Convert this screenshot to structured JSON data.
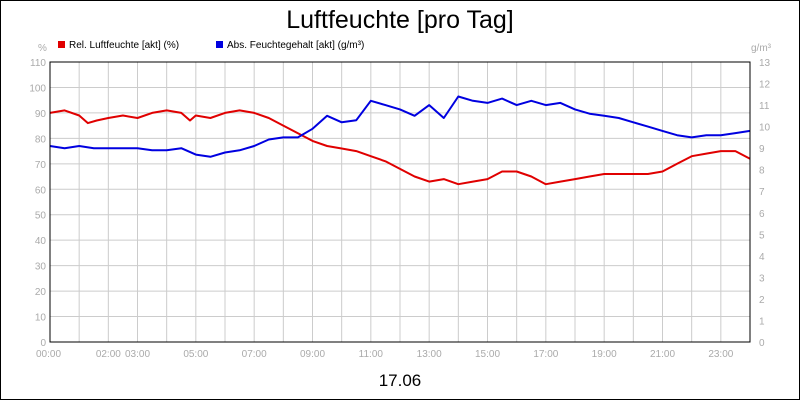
{
  "chart_data": {
    "type": "line",
    "title": "Luftfeuchte [pro Tag]",
    "date_label": "17.06",
    "y_left_unit": "%",
    "y_right_unit": "g/m³",
    "y_left_range": [
      0,
      110
    ],
    "y_left_ticks": [
      0,
      10,
      20,
      30,
      40,
      50,
      60,
      70,
      80,
      90,
      100,
      110
    ],
    "y_right_range": [
      0,
      13
    ],
    "y_right_ticks": [
      0,
      1,
      2,
      3,
      4,
      5,
      6,
      7,
      8,
      9,
      10,
      11,
      12,
      13
    ],
    "x_range": [
      0,
      24
    ],
    "x_ticks": [
      {
        "x": 0,
        "label": "00:00"
      },
      {
        "x": 2,
        "label": "02:00"
      },
      {
        "x": 3,
        "label": "03:00"
      },
      {
        "x": 5,
        "label": "05:00"
      },
      {
        "x": 7,
        "label": "07:00"
      },
      {
        "x": 9,
        "label": "09:00"
      },
      {
        "x": 11,
        "label": "11:00"
      },
      {
        "x": 13,
        "label": "13:00"
      },
      {
        "x": 15,
        "label": "15:00"
      },
      {
        "x": 17,
        "label": "17:00"
      },
      {
        "x": 19,
        "label": "19:00"
      },
      {
        "x": 21,
        "label": "21:00"
      },
      {
        "x": 23,
        "label": "23:00"
      }
    ],
    "grid": true,
    "legend_position": "top-left",
    "series": [
      {
        "name": "Rel. Luftfeuchte [akt] (%)",
        "color": "#e00000",
        "axis": "left",
        "x": [
          0,
          0.5,
          1,
          1.3,
          1.6,
          2,
          2.5,
          3,
          3.5,
          4,
          4.5,
          4.8,
          5,
          5.5,
          6,
          6.5,
          7,
          7.5,
          8,
          8.5,
          9,
          9.5,
          10,
          10.5,
          11,
          11.5,
          12,
          12.5,
          13,
          13.5,
          14,
          14.5,
          15,
          15.5,
          16,
          16.5,
          17,
          17.5,
          18,
          18.5,
          19,
          19.5,
          20,
          20.5,
          21,
          21.5,
          22,
          22.5,
          23,
          23.5,
          24
        ],
        "values": [
          90,
          91,
          89,
          86,
          87,
          88,
          89,
          88,
          90,
          91,
          90,
          87,
          89,
          88,
          90,
          91,
          90,
          88,
          85,
          82,
          79,
          77,
          76,
          75,
          73,
          71,
          68,
          65,
          63,
          64,
          62,
          63,
          64,
          67,
          67,
          65,
          62,
          63,
          64,
          65,
          66,
          66,
          66,
          66,
          67,
          70,
          73,
          74,
          75,
          75,
          72
        ]
      },
      {
        "name": "Abs. Feuchtegehalt [akt] (g/m³)",
        "color": "#0000e0",
        "axis": "right",
        "x": [
          0,
          0.5,
          1,
          1.5,
          2,
          2.5,
          3,
          3.5,
          4,
          4.5,
          5,
          5.5,
          6,
          6.5,
          7,
          7.5,
          8,
          8.5,
          9,
          9.5,
          10,
          10.5,
          11,
          11.5,
          12,
          12.5,
          13,
          13.5,
          14,
          14.5,
          15,
          15.5,
          16,
          16.5,
          17,
          17.5,
          18,
          18.5,
          19,
          19.5,
          20,
          20.5,
          21,
          21.5,
          22,
          22.5,
          23,
          23.5,
          24
        ],
        "values": [
          9.1,
          9.0,
          9.1,
          9.0,
          9.0,
          9.0,
          9.0,
          8.9,
          8.9,
          9.0,
          8.7,
          8.6,
          8.8,
          8.9,
          9.1,
          9.4,
          9.5,
          9.5,
          9.9,
          10.5,
          10.2,
          10.3,
          11.2,
          11.0,
          10.8,
          10.5,
          11.0,
          10.4,
          11.4,
          11.2,
          11.1,
          11.3,
          11.0,
          11.2,
          11.0,
          11.1,
          10.8,
          10.6,
          10.5,
          10.4,
          10.2,
          10.0,
          9.8,
          9.6,
          9.5,
          9.6,
          9.6,
          9.7,
          9.8
        ]
      }
    ]
  }
}
